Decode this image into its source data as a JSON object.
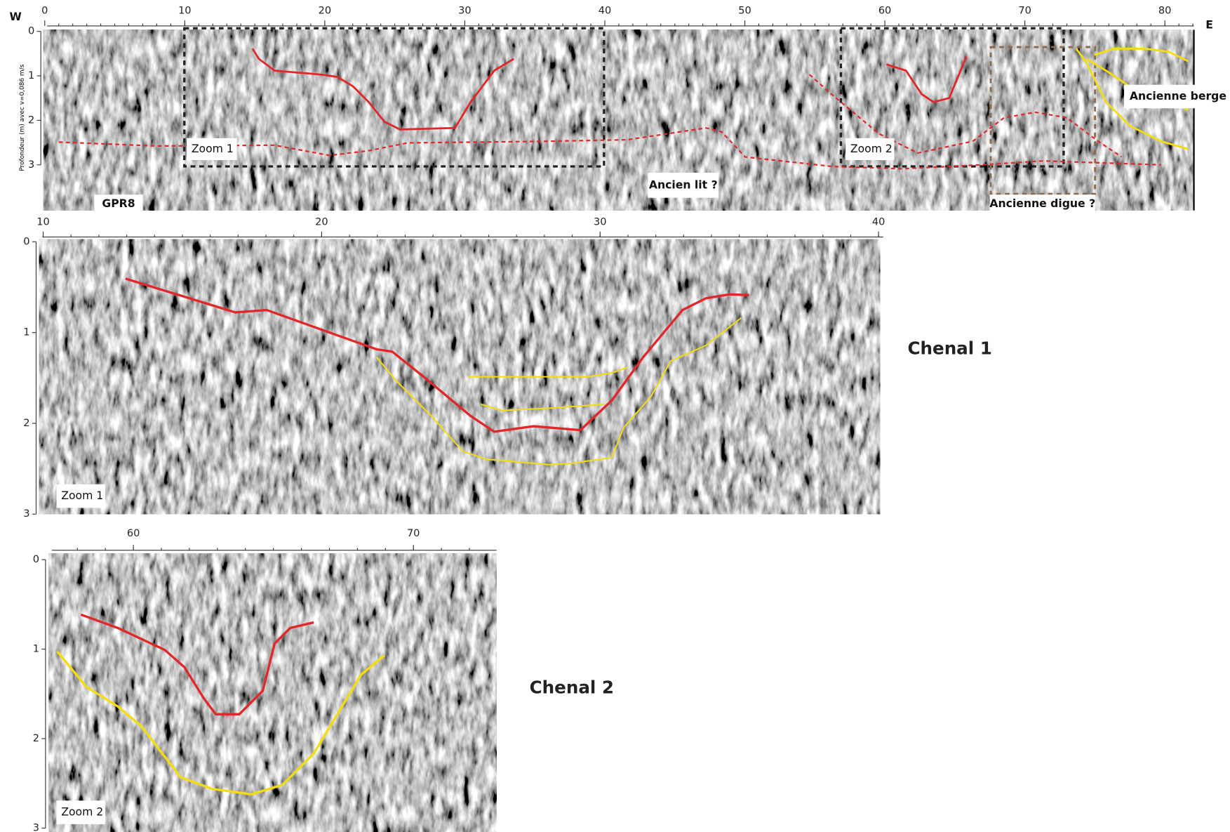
{
  "main": {
    "west": "W",
    "east": "E",
    "y_label": "Profondeur (m) avec v=0,086 m/s",
    "profile": "GPR8",
    "xticks": [
      0,
      10,
      20,
      30,
      40,
      50,
      60,
      70,
      80
    ],
    "yticks": [
      0,
      1,
      2,
      3
    ],
    "zoom1": "Zoom 1",
    "zoom2": "Zoom 2",
    "lit": "Ancien lit ?",
    "digue": "Ancienne digue ?",
    "berge": "Ancienne berge ?"
  },
  "zoom_1": {
    "xticks": [
      10,
      20,
      30,
      40
    ],
    "yticks": [
      0,
      1,
      2,
      3
    ],
    "label": "Zoom 1",
    "title": "Chenal 1"
  },
  "zoom_2": {
    "xticks": [
      60,
      70
    ],
    "yticks": [
      0,
      1,
      2,
      3
    ],
    "label": "Zoom 2",
    "title": "Chenal 2"
  }
}
